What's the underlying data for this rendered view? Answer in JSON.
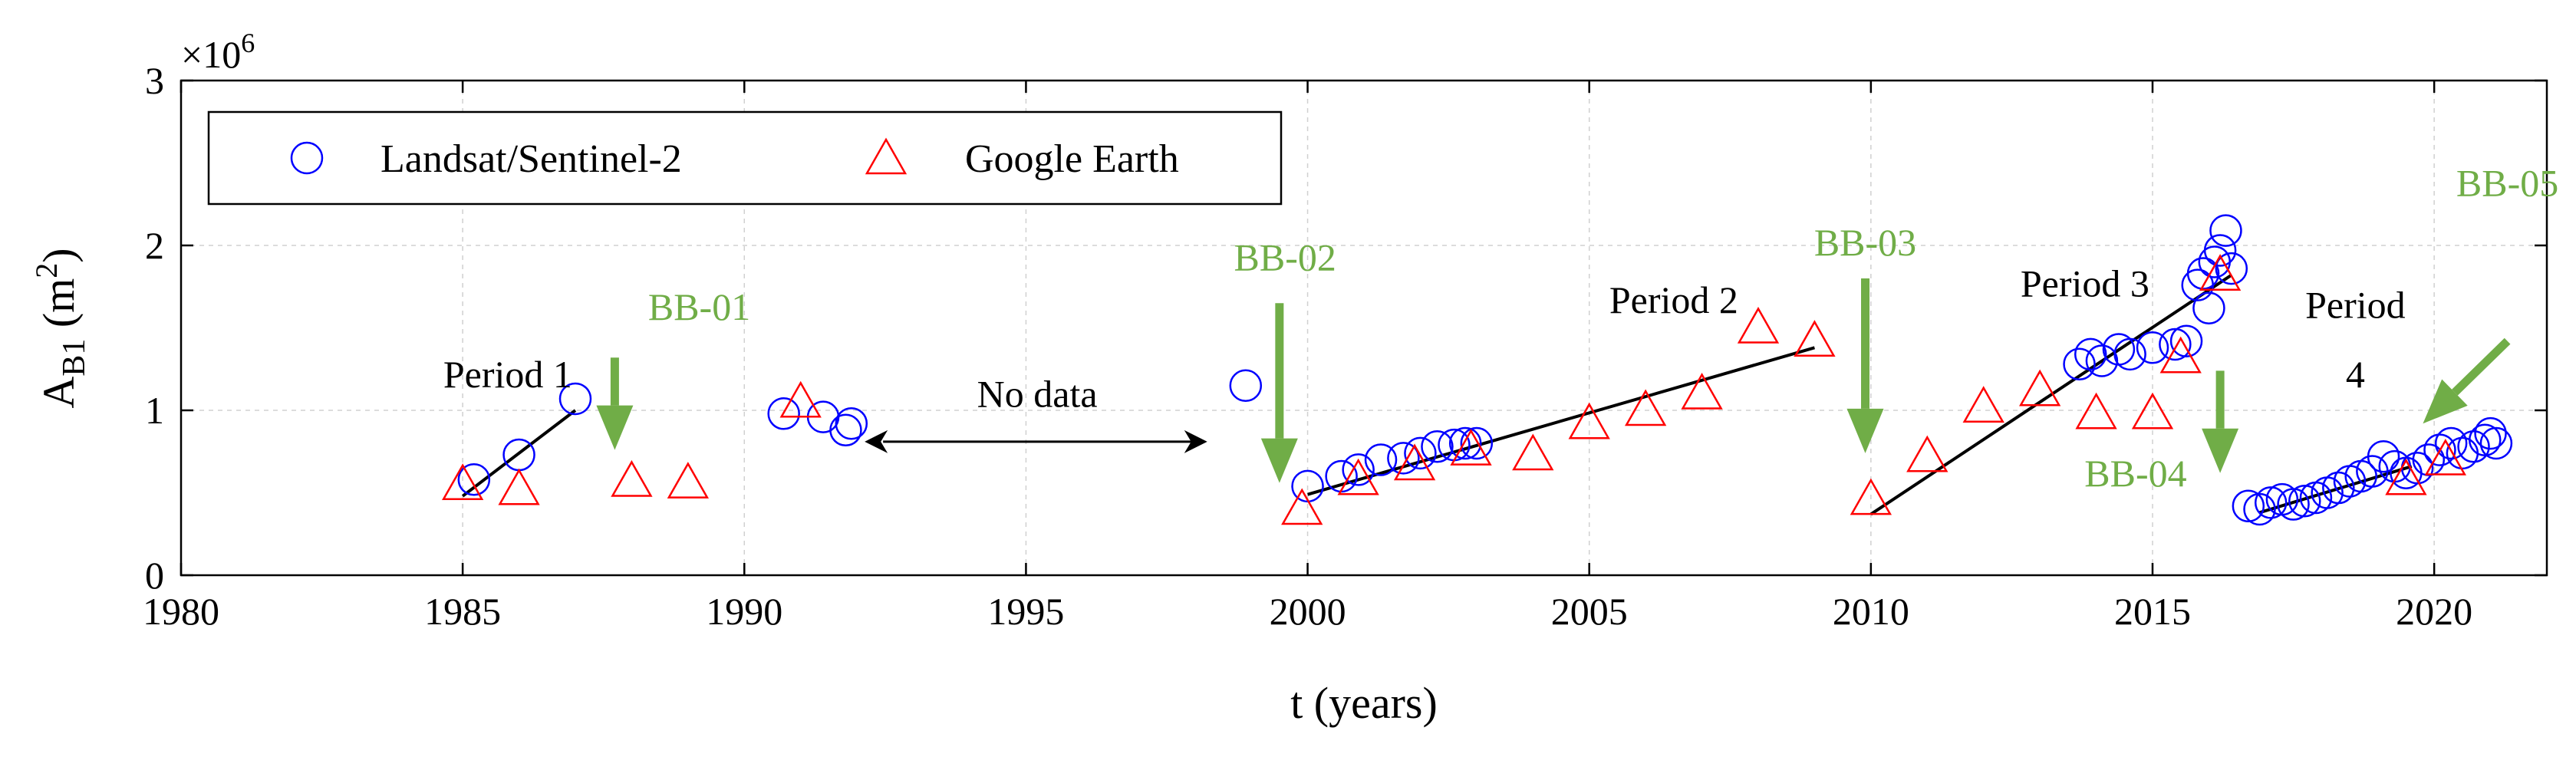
{
  "chart_data": {
    "type": "scatter",
    "title": "",
    "xlabel": "t (years)",
    "ylabel": {
      "main": "A",
      "sub": "B1",
      "paren_open": " (m",
      "sup": "2",
      "paren_close": ")"
    },
    "xlim": [
      1980,
      2022
    ],
    "ylim": [
      0,
      3
    ],
    "y_multiplier": {
      "base": "×10",
      "exponent": "6"
    },
    "grid": true,
    "xticks": [
      1980,
      1985,
      1990,
      1995,
      2000,
      2005,
      2010,
      2015,
      2020
    ],
    "yticks": [
      0,
      1,
      2,
      3
    ],
    "legend": {
      "placement": "top-left",
      "entries": [
        {
          "name": "Landsat/Sentinel-2",
          "marker": "circle",
          "color": "#0000ff"
        },
        {
          "name": "Google Earth",
          "marker": "triangle",
          "color": "#ff0000"
        }
      ]
    },
    "series": [
      {
        "name": "Landsat/Sentinel-2",
        "marker": "circle",
        "color": "#0000ff",
        "points": [
          [
            1985.2,
            0.58
          ],
          [
            1986.0,
            0.73
          ],
          [
            1987.0,
            1.07
          ],
          [
            1990.7,
            0.98
          ],
          [
            1991.4,
            0.96
          ],
          [
            1991.8,
            0.88
          ],
          [
            1991.9,
            0.92
          ],
          [
            1998.9,
            1.15
          ],
          [
            2000.0,
            0.54
          ],
          [
            2000.6,
            0.6
          ],
          [
            2000.9,
            0.64
          ],
          [
            2001.3,
            0.7
          ],
          [
            2001.7,
            0.71
          ],
          [
            2002.0,
            0.74
          ],
          [
            2002.3,
            0.78
          ],
          [
            2002.6,
            0.79
          ],
          [
            2002.8,
            0.8
          ],
          [
            2003.0,
            0.8
          ],
          [
            2013.7,
            1.28
          ],
          [
            2013.9,
            1.34
          ],
          [
            2014.1,
            1.3
          ],
          [
            2014.4,
            1.37
          ],
          [
            2014.6,
            1.34
          ],
          [
            2015.0,
            1.38
          ],
          [
            2015.4,
            1.4
          ],
          [
            2015.6,
            1.42
          ],
          [
            2015.8,
            1.76
          ],
          [
            2015.9,
            1.83
          ],
          [
            2016.0,
            1.62
          ],
          [
            2016.1,
            1.9
          ],
          [
            2016.2,
            1.97
          ],
          [
            2016.3,
            2.09
          ],
          [
            2016.4,
            1.86
          ],
          [
            2016.7,
            0.42
          ],
          [
            2016.9,
            0.4
          ],
          [
            2017.1,
            0.44
          ],
          [
            2017.3,
            0.46
          ],
          [
            2017.5,
            0.43
          ],
          [
            2017.7,
            0.45
          ],
          [
            2017.9,
            0.47
          ],
          [
            2018.1,
            0.5
          ],
          [
            2018.3,
            0.53
          ],
          [
            2018.5,
            0.57
          ],
          [
            2018.7,
            0.6
          ],
          [
            2018.9,
            0.63
          ],
          [
            2019.1,
            0.72
          ],
          [
            2019.3,
            0.66
          ],
          [
            2019.5,
            0.62
          ],
          [
            2019.7,
            0.65
          ],
          [
            2019.9,
            0.7
          ],
          [
            2020.1,
            0.76
          ],
          [
            2020.3,
            0.8
          ],
          [
            2020.5,
            0.74
          ],
          [
            2020.7,
            0.78
          ],
          [
            2020.9,
            0.82
          ],
          [
            2021.0,
            0.86
          ],
          [
            2021.1,
            0.8
          ]
        ]
      },
      {
        "name": "Google Earth",
        "marker": "triangle",
        "color": "#ff0000",
        "points": [
          [
            1985.0,
            0.55
          ],
          [
            1986.0,
            0.52
          ],
          [
            1988.0,
            0.57
          ],
          [
            1989.0,
            0.56
          ],
          [
            1991.0,
            1.05
          ],
          [
            1999.9,
            0.4
          ],
          [
            2000.9,
            0.58
          ],
          [
            2001.9,
            0.67
          ],
          [
            2002.9,
            0.76
          ],
          [
            2004.0,
            0.73
          ],
          [
            2005.0,
            0.92
          ],
          [
            2006.0,
            1.0
          ],
          [
            2007.0,
            1.1
          ],
          [
            2008.0,
            1.5
          ],
          [
            2009.0,
            1.42
          ],
          [
            2010.0,
            0.46
          ],
          [
            2011.0,
            0.72
          ],
          [
            2012.0,
            1.02
          ],
          [
            2013.0,
            1.12
          ],
          [
            2014.0,
            0.98
          ],
          [
            2015.0,
            0.98
          ],
          [
            2015.5,
            1.32
          ],
          [
            2016.2,
            1.82
          ],
          [
            2019.5,
            0.58
          ],
          [
            2020.2,
            0.7
          ]
        ]
      }
    ],
    "trend_lines": [
      {
        "name": "Period 1",
        "from": [
          1985.0,
          0.48
        ],
        "to": [
          1987.0,
          1.0
        ]
      },
      {
        "name": "Period 2",
        "from": [
          2000.0,
          0.49
        ],
        "to": [
          2009.0,
          1.38
        ]
      },
      {
        "name": "Period 3",
        "from": [
          2010.0,
          0.37
        ],
        "to": [
          2016.4,
          1.82
        ]
      },
      {
        "name": "Period 4",
        "from": [
          2016.9,
          0.38
        ],
        "to": [
          2019.6,
          0.66
        ]
      }
    ],
    "period_labels": [
      {
        "text": "Period 1",
        "x": 1985.8,
        "y": 1.14
      },
      {
        "text": "Period 2",
        "x": 2006.5,
        "y": 1.59
      },
      {
        "text": "Period 3",
        "x": 2013.8,
        "y": 1.69
      },
      {
        "text": "Period",
        "x": 2018.6,
        "y": 1.56
      },
      {
        "text": "4",
        "x": 2018.6,
        "y": 1.14
      }
    ],
    "no_data": {
      "text": "No data",
      "x": 1995.2,
      "y": 1.02,
      "arrow_from": 1992.3,
      "arrow_to": 1998.3,
      "arrow_y": 0.81
    },
    "events": [
      {
        "label": "BB-01",
        "label_pos": [
          1989.2,
          1.55
        ],
        "arrow_from": [
          1987.7,
          1.32
        ],
        "arrow_to": [
          1987.7,
          0.76
        ]
      },
      {
        "label": "BB-02",
        "label_pos": [
          1999.6,
          1.85
        ],
        "arrow_from": [
          1999.5,
          1.65
        ],
        "arrow_to": [
          1999.5,
          0.56
        ]
      },
      {
        "label": "BB-03",
        "label_pos": [
          2009.9,
          1.94
        ],
        "arrow_from": [
          2009.9,
          1.8
        ],
        "arrow_to": [
          2009.9,
          0.74
        ]
      },
      {
        "label": "BB-04",
        "label_pos": [
          2014.7,
          0.54
        ],
        "arrow_from": [
          2016.2,
          1.24
        ],
        "arrow_to": [
          2016.2,
          0.62
        ]
      },
      {
        "label": "BB-05",
        "label_pos": [
          2021.3,
          2.3
        ],
        "arrow_from": [
          2021.3,
          1.42
        ],
        "arrow_to": [
          2019.8,
          0.92
        ]
      }
    ],
    "colors": {
      "annotation_green": "#70ad47",
      "grid": "#d0d0d0"
    }
  }
}
